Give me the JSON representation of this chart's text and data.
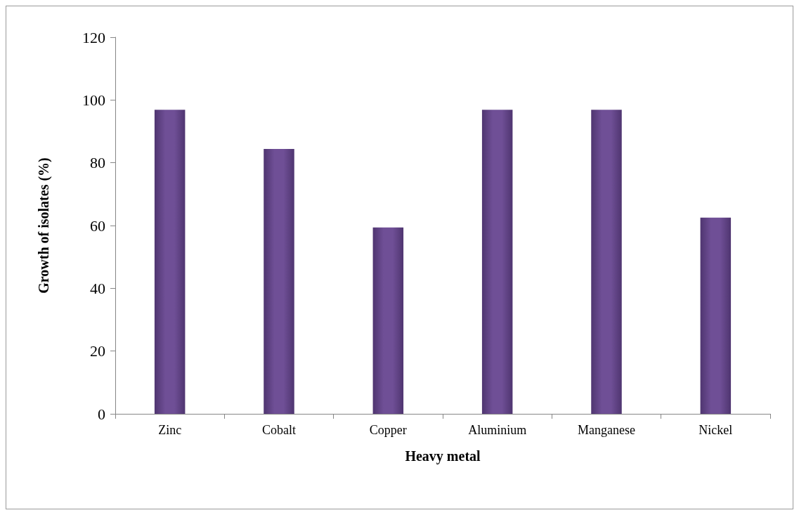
{
  "chart_data": {
    "type": "bar",
    "xlabel": "Heavy metal",
    "ylabel": "Growth of isolates (%)",
    "categories": [
      "Zinc",
      "Cobalt",
      "Copper",
      "Aluminium",
      "Manganese",
      "Nickel"
    ],
    "values": [
      96.9,
      84.4,
      59.4,
      96.9,
      96.9,
      62.5
    ],
    "color": "#6f4f96",
    "ylim": [
      0,
      120
    ],
    "yticks": [
      0,
      20,
      40,
      60,
      80,
      100,
      120
    ],
    "grid": false
  }
}
